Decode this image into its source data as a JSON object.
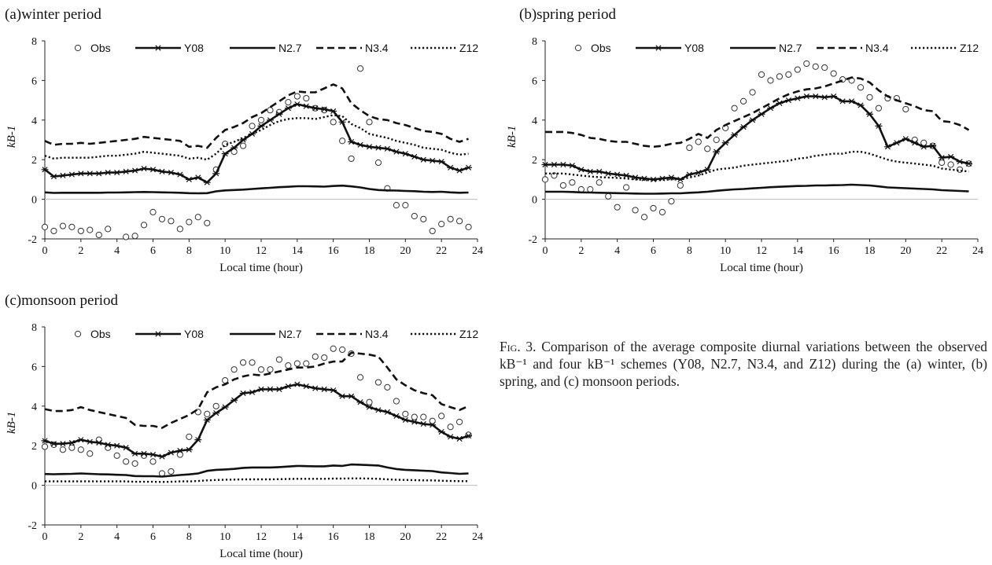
{
  "figure": {
    "caption_label": "Fig. 3.",
    "caption_text": "Comparison of the average composite diurnal variations between the observed kB⁻¹ and four kB⁻¹ schemes (Y08, N2.7, N3.4, and Z12) during the (a) winter, (b) spring, and (c) monsoon periods."
  },
  "chart_data": [
    {
      "type": "line",
      "title": "(a)winter period",
      "xlabel": "Local time (hour)",
      "ylabel": "kB-1",
      "xlim": [
        0,
        24
      ],
      "ylim": [
        -2,
        8
      ],
      "xticks": [
        0,
        2,
        4,
        6,
        8,
        10,
        12,
        14,
        16,
        18,
        20,
        22,
        24
      ],
      "yticks": [
        -2,
        0,
        2,
        4,
        6,
        8
      ],
      "legend_position": "top",
      "x": [
        0,
        0.5,
        1,
        1.5,
        2,
        2.5,
        3,
        3.5,
        4,
        4.5,
        5,
        5.5,
        6,
        6.5,
        7,
        7.5,
        8,
        8.5,
        9,
        9.5,
        10,
        10.5,
        11,
        11.5,
        12,
        12.5,
        13,
        13.5,
        14,
        14.5,
        15,
        15.5,
        16,
        16.5,
        17,
        17.5,
        18,
        18.5,
        19,
        19.5,
        20,
        20.5,
        21,
        21.5,
        22,
        22.5,
        23,
        23.5
      ],
      "series": [
        {
          "name": "Obs",
          "values": [
            -1.4,
            -1.6,
            -1.35,
            -1.4,
            -1.6,
            -1.55,
            -1.8,
            -1.5,
            null,
            -1.9,
            -1.85,
            -1.3,
            -0.65,
            -1.0,
            -1.1,
            -1.5,
            -1.15,
            -0.9,
            -1.2,
            1.5,
            2.8,
            2.4,
            2.7,
            3.7,
            4.0,
            4.5,
            4.4,
            4.9,
            5.2,
            5.1,
            4.6,
            4.5,
            3.9,
            2.95,
            2.05,
            6.6,
            3.9,
            1.85,
            0.55,
            -0.3,
            -0.3,
            -0.85,
            -1.0,
            -1.6,
            -1.25,
            -1.0,
            -1.1,
            -1.4
          ]
        },
        {
          "name": "Y08",
          "values": [
            1.5,
            1.15,
            1.2,
            1.25,
            1.3,
            1.3,
            1.3,
            1.35,
            1.35,
            1.4,
            1.45,
            1.55,
            1.5,
            1.4,
            1.35,
            1.25,
            1.0,
            1.1,
            0.85,
            1.3,
            2.3,
            2.6,
            3.0,
            3.3,
            3.7,
            4.0,
            4.3,
            4.6,
            4.8,
            4.7,
            4.6,
            4.55,
            4.45,
            3.9,
            2.9,
            2.75,
            2.65,
            2.6,
            2.55,
            2.4,
            2.3,
            2.15,
            2.0,
            1.95,
            1.9,
            1.6,
            1.45,
            1.6
          ]
        },
        {
          "name": "N2.7",
          "values": [
            0.35,
            0.32,
            0.33,
            0.33,
            0.33,
            0.33,
            0.33,
            0.34,
            0.34,
            0.35,
            0.36,
            0.37,
            0.36,
            0.35,
            0.34,
            0.33,
            0.31,
            0.3,
            0.31,
            0.4,
            0.45,
            0.47,
            0.49,
            0.52,
            0.55,
            0.58,
            0.61,
            0.63,
            0.66,
            0.66,
            0.65,
            0.64,
            0.67,
            0.69,
            0.65,
            0.6,
            0.52,
            0.47,
            0.45,
            0.44,
            0.42,
            0.41,
            0.38,
            0.37,
            0.38,
            0.35,
            0.33,
            0.34
          ]
        },
        {
          "name": "N3.4",
          "values": [
            2.95,
            2.75,
            2.8,
            2.8,
            2.85,
            2.8,
            2.85,
            2.9,
            2.95,
            3.0,
            3.05,
            3.15,
            3.1,
            3.05,
            3.0,
            2.95,
            2.65,
            2.7,
            2.6,
            3.1,
            3.5,
            3.65,
            3.85,
            4.15,
            4.35,
            4.65,
            4.95,
            5.25,
            5.45,
            5.4,
            5.4,
            5.6,
            5.8,
            5.6,
            4.85,
            4.5,
            4.2,
            4.05,
            4.0,
            3.85,
            3.75,
            3.6,
            3.45,
            3.4,
            3.3,
            3.05,
            2.9,
            3.05
          ]
        },
        {
          "name": "Z12",
          "values": [
            2.2,
            2.05,
            2.1,
            2.1,
            2.1,
            2.1,
            2.15,
            2.2,
            2.2,
            2.25,
            2.3,
            2.4,
            2.35,
            2.3,
            2.25,
            2.2,
            2.05,
            2.1,
            2.0,
            2.3,
            2.75,
            2.9,
            3.1,
            3.3,
            3.5,
            3.75,
            3.95,
            4.05,
            4.1,
            4.1,
            4.05,
            4.15,
            4.25,
            4.2,
            3.8,
            3.6,
            3.3,
            3.2,
            3.1,
            2.95,
            2.85,
            2.75,
            2.6,
            2.55,
            2.5,
            2.35,
            2.25,
            2.3
          ]
        }
      ]
    },
    {
      "type": "line",
      "title": "(b)spring period",
      "xlabel": "Local time (hour)",
      "ylabel": "kB-1",
      "xlim": [
        0,
        24
      ],
      "ylim": [
        -2,
        8
      ],
      "xticks": [
        0,
        2,
        4,
        6,
        8,
        10,
        12,
        14,
        16,
        18,
        20,
        22,
        24
      ],
      "yticks": [
        -2,
        0,
        2,
        4,
        6,
        8
      ],
      "legend_position": "top",
      "x": [
        0,
        0.5,
        1,
        1.5,
        2,
        2.5,
        3,
        3.5,
        4,
        4.5,
        5,
        5.5,
        6,
        6.5,
        7,
        7.5,
        8,
        8.5,
        9,
        9.5,
        10,
        10.5,
        11,
        11.5,
        12,
        12.5,
        13,
        13.5,
        14,
        14.5,
        15,
        15.5,
        16,
        16.5,
        17,
        17.5,
        18,
        18.5,
        19,
        19.5,
        20,
        20.5,
        21,
        21.5,
        22,
        22.5,
        23,
        23.5
      ],
      "series": [
        {
          "name": "Obs",
          "values": [
            1.0,
            1.2,
            0.7,
            0.85,
            0.5,
            0.5,
            0.85,
            0.15,
            -0.4,
            0.6,
            -0.55,
            -0.9,
            -0.45,
            -0.65,
            -0.1,
            0.7,
            2.6,
            2.9,
            2.55,
            3.0,
            3.6,
            4.6,
            4.95,
            5.4,
            6.3,
            6.0,
            6.2,
            6.3,
            6.55,
            6.85,
            6.7,
            6.65,
            6.35,
            6.05,
            6.0,
            5.65,
            5.15,
            4.6,
            5.1,
            5.1,
            4.55,
            3.0,
            2.85,
            2.7,
            1.85,
            1.75,
            1.5,
            1.8
          ]
        },
        {
          "name": "Y08",
          "values": [
            1.75,
            1.75,
            1.75,
            1.7,
            1.5,
            1.4,
            1.4,
            1.3,
            1.25,
            1.2,
            1.1,
            1.05,
            1.0,
            1.05,
            1.1,
            1.0,
            1.25,
            1.35,
            1.5,
            2.4,
            2.85,
            3.25,
            3.65,
            4.0,
            4.3,
            4.6,
            4.85,
            5.0,
            5.1,
            5.2,
            5.2,
            5.15,
            5.2,
            4.95,
            4.95,
            4.75,
            4.3,
            3.7,
            2.65,
            2.85,
            3.05,
            2.85,
            2.65,
            2.7,
            2.1,
            2.15,
            1.9,
            1.8
          ]
        },
        {
          "name": "N2.7",
          "values": [
            0.38,
            0.38,
            0.38,
            0.37,
            0.35,
            0.34,
            0.33,
            0.32,
            0.31,
            0.3,
            0.29,
            0.28,
            0.28,
            0.29,
            0.3,
            0.3,
            0.33,
            0.35,
            0.38,
            0.43,
            0.47,
            0.5,
            0.52,
            0.55,
            0.58,
            0.61,
            0.63,
            0.65,
            0.67,
            0.68,
            0.7,
            0.7,
            0.71,
            0.72,
            0.74,
            0.72,
            0.7,
            0.65,
            0.6,
            0.58,
            0.56,
            0.54,
            0.52,
            0.5,
            0.46,
            0.44,
            0.42,
            0.4
          ]
        },
        {
          "name": "N3.4",
          "values": [
            3.4,
            3.4,
            3.4,
            3.35,
            3.25,
            3.1,
            3.05,
            2.95,
            2.9,
            2.9,
            2.8,
            2.7,
            2.65,
            2.7,
            2.8,
            2.85,
            3.05,
            3.3,
            3.1,
            3.5,
            3.75,
            3.95,
            4.15,
            4.35,
            4.6,
            4.85,
            5.1,
            5.3,
            5.45,
            5.55,
            5.6,
            5.7,
            5.85,
            6.0,
            6.15,
            6.1,
            5.9,
            5.5,
            5.2,
            5.0,
            4.85,
            4.7,
            4.5,
            4.45,
            3.95,
            3.9,
            3.75,
            3.5
          ]
        },
        {
          "name": "Z12",
          "values": [
            1.3,
            1.3,
            1.3,
            1.25,
            1.2,
            1.15,
            1.12,
            1.1,
            1.08,
            1.05,
            1.0,
            0.98,
            0.95,
            0.98,
            1.0,
            1.0,
            1.1,
            1.2,
            1.35,
            1.5,
            1.55,
            1.6,
            1.7,
            1.75,
            1.8,
            1.85,
            1.9,
            1.95,
            2.05,
            2.1,
            2.2,
            2.25,
            2.3,
            2.3,
            2.4,
            2.4,
            2.3,
            2.15,
            2.0,
            1.9,
            1.85,
            1.8,
            1.75,
            1.7,
            1.55,
            1.5,
            1.45,
            1.4
          ]
        }
      ]
    },
    {
      "type": "line",
      "title": "(c)monsoon period",
      "xlabel": "Local time (hour)",
      "ylabel": "kB-1",
      "xlim": [
        0,
        24
      ],
      "ylim": [
        -2,
        8
      ],
      "xticks": [
        0,
        2,
        4,
        6,
        8,
        10,
        12,
        14,
        16,
        18,
        20,
        22,
        24
      ],
      "yticks": [
        -2,
        0,
        2,
        4,
        6,
        8
      ],
      "legend_position": "top",
      "x": [
        0,
        0.5,
        1,
        1.5,
        2,
        2.5,
        3,
        3.5,
        4,
        4.5,
        5,
        5.5,
        6,
        6.5,
        7,
        7.5,
        8,
        8.5,
        9,
        9.5,
        10,
        10.5,
        11,
        11.5,
        12,
        12.5,
        13,
        13.5,
        14,
        14.5,
        15,
        15.5,
        16,
        16.5,
        17,
        17.5,
        18,
        18.5,
        19,
        19.5,
        20,
        20.5,
        21,
        21.5,
        22,
        22.5,
        23,
        23.5
      ],
      "series": [
        {
          "name": "Obs",
          "values": [
            1.95,
            2.05,
            1.8,
            1.9,
            1.8,
            1.6,
            2.3,
            1.9,
            1.5,
            1.2,
            1.1,
            1.5,
            1.2,
            0.6,
            0.7,
            1.55,
            2.45,
            3.7,
            3.6,
            4.0,
            5.3,
            5.85,
            6.2,
            6.2,
            5.85,
            5.85,
            6.35,
            6.05,
            6.15,
            6.15,
            6.5,
            6.45,
            6.9,
            6.85,
            6.65,
            5.45,
            4.2,
            5.2,
            4.95,
            4.25,
            3.6,
            3.45,
            3.45,
            3.25,
            3.5,
            2.95,
            3.2,
            2.55
          ]
        },
        {
          "name": "Y08",
          "values": [
            2.25,
            2.1,
            2.1,
            2.15,
            2.3,
            2.2,
            2.15,
            2.05,
            2.0,
            1.9,
            1.6,
            1.6,
            1.55,
            1.45,
            1.65,
            1.75,
            1.8,
            2.3,
            3.3,
            3.65,
            3.95,
            4.3,
            4.65,
            4.7,
            4.85,
            4.85,
            4.85,
            5.0,
            5.1,
            5.0,
            4.9,
            4.85,
            4.8,
            4.5,
            4.5,
            4.2,
            3.95,
            3.8,
            3.7,
            3.5,
            3.3,
            3.2,
            3.1,
            3.05,
            2.7,
            2.45,
            2.35,
            2.5
          ]
        },
        {
          "name": "N2.7",
          "values": [
            0.57,
            0.56,
            0.57,
            0.58,
            0.6,
            0.58,
            0.56,
            0.55,
            0.53,
            0.52,
            0.47,
            0.46,
            0.46,
            0.44,
            0.48,
            0.52,
            0.55,
            0.6,
            0.73,
            0.78,
            0.8,
            0.83,
            0.88,
            0.9,
            0.9,
            0.9,
            0.92,
            0.95,
            0.98,
            0.97,
            0.96,
            0.96,
            1.0,
            0.98,
            1.05,
            1.04,
            1.02,
            1.0,
            0.9,
            0.82,
            0.78,
            0.76,
            0.74,
            0.72,
            0.65,
            0.62,
            0.58,
            0.6
          ]
        },
        {
          "name": "N3.4",
          "values": [
            3.85,
            3.75,
            3.75,
            3.8,
            3.95,
            3.8,
            3.7,
            3.6,
            3.5,
            3.4,
            3.05,
            3.0,
            3.0,
            2.9,
            3.15,
            3.35,
            3.55,
            3.85,
            4.7,
            4.95,
            5.1,
            5.35,
            5.5,
            5.6,
            5.55,
            5.65,
            5.75,
            5.85,
            5.95,
            5.95,
            6.0,
            6.15,
            6.25,
            6.25,
            6.7,
            6.65,
            6.6,
            6.5,
            5.95,
            5.35,
            5.05,
            4.8,
            4.65,
            4.55,
            4.1,
            3.95,
            3.8,
            4.0
          ]
        },
        {
          "name": "Z12",
          "values": [
            0.2,
            0.2,
            0.2,
            0.2,
            0.2,
            0.2,
            0.2,
            0.2,
            0.2,
            0.2,
            0.18,
            0.18,
            0.18,
            0.17,
            0.18,
            0.2,
            0.2,
            0.22,
            0.25,
            0.27,
            0.28,
            0.29,
            0.3,
            0.3,
            0.3,
            0.3,
            0.31,
            0.32,
            0.33,
            0.33,
            0.33,
            0.33,
            0.34,
            0.34,
            0.35,
            0.35,
            0.34,
            0.33,
            0.3,
            0.28,
            0.27,
            0.26,
            0.25,
            0.25,
            0.23,
            0.22,
            0.21,
            0.21
          ]
        }
      ]
    }
  ]
}
